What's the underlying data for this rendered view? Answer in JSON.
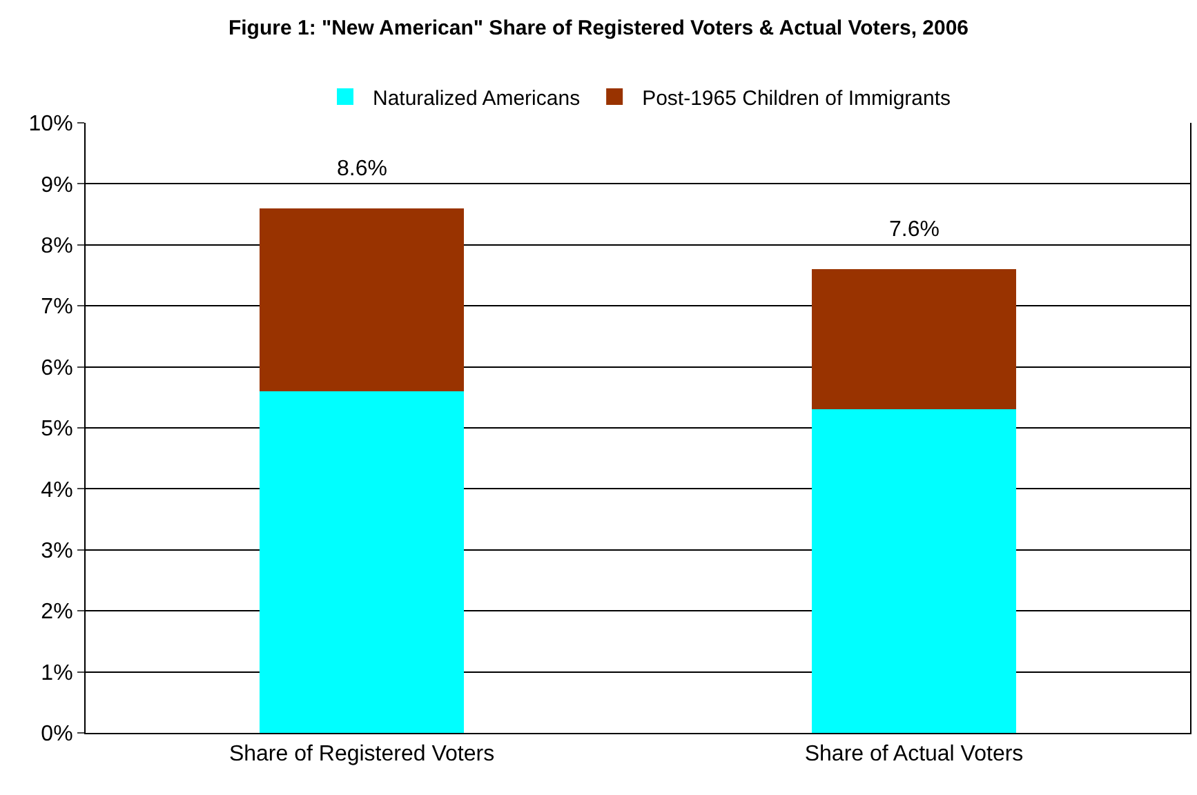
{
  "chart_data": {
    "type": "bar",
    "title": "Figure 1: \"New American\" Share of Registered Voters & Actual Voters, 2006",
    "categories": [
      "Share of Registered Voters",
      "Share of Actual Voters"
    ],
    "stacked": true,
    "series": [
      {
        "name": "Naturalized Americans",
        "color": "#00ffff",
        "values": [
          5.6,
          5.3
        ]
      },
      {
        "name": "Post-1965 Children of Immigrants",
        "color": "#993300",
        "values": [
          3.0,
          2.3
        ]
      }
    ],
    "totals": [
      "8.6%",
      "7.6%"
    ],
    "ylim": [
      0,
      10
    ],
    "yticks": [
      {
        "value": 0,
        "label": "0%"
      },
      {
        "value": 1,
        "label": "1%"
      },
      {
        "value": 2,
        "label": "2%"
      },
      {
        "value": 3,
        "label": "3%"
      },
      {
        "value": 4,
        "label": "4%"
      },
      {
        "value": 5,
        "label": "5%"
      },
      {
        "value": 6,
        "label": "6%"
      },
      {
        "value": 7,
        "label": "7%"
      },
      {
        "value": 8,
        "label": "8%"
      },
      {
        "value": 9,
        "label": "9%"
      },
      {
        "value": 10,
        "label": "10%"
      }
    ],
    "grid": "y",
    "legend": "top"
  }
}
